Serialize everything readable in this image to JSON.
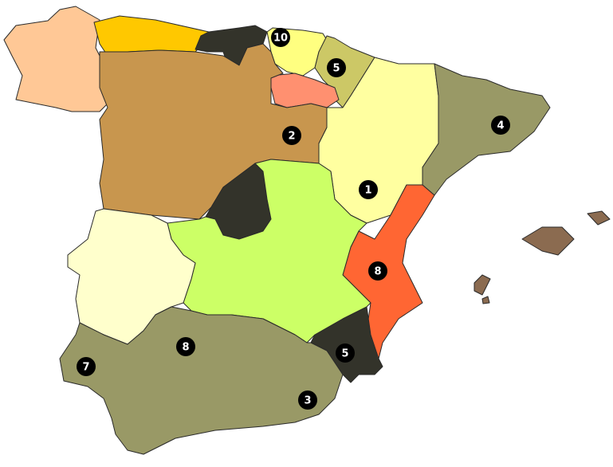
{
  "map": {
    "regions": [
      {
        "id": "galicia",
        "color": "#FFC896"
      },
      {
        "id": "asturias",
        "color": "#FFC800"
      },
      {
        "id": "cantabria",
        "color": "#33332A"
      },
      {
        "id": "basque-country",
        "color": "#FFFF80"
      },
      {
        "id": "navarra",
        "color": "#CCC866"
      },
      {
        "id": "la-rioja",
        "color": "#FF9070"
      },
      {
        "id": "castilla-y-leon",
        "color": "#C8964E"
      },
      {
        "id": "aragon",
        "color": "#FFFFA0"
      },
      {
        "id": "catalonia",
        "color": "#999966"
      },
      {
        "id": "valencia",
        "color": "#FF6633"
      },
      {
        "id": "murcia",
        "color": "#33332A"
      },
      {
        "id": "madrid",
        "color": "#33332A"
      },
      {
        "id": "castilla-la-mancha",
        "color": "#CCFF66"
      },
      {
        "id": "extremadura",
        "color": "#FFFFCC"
      },
      {
        "id": "andalucia",
        "color": "#999966"
      },
      {
        "id": "balearic-islands",
        "color": "#8B6B50"
      }
    ],
    "markers": [
      {
        "region": "basque-country",
        "label": "10"
      },
      {
        "region": "navarra",
        "label": "5"
      },
      {
        "region": "castilla-y-leon",
        "label": "2"
      },
      {
        "region": "catalonia",
        "label": "4"
      },
      {
        "region": "aragon",
        "label": "1"
      },
      {
        "region": "valencia",
        "label": "8"
      },
      {
        "region": "murcia",
        "label": "5"
      },
      {
        "region": "andalucia-cordoba",
        "label": "8"
      },
      {
        "region": "andalucia-huelva",
        "label": "7"
      },
      {
        "region": "andalucia-almeria",
        "label": "3"
      }
    ],
    "marker_color": "#000000"
  }
}
